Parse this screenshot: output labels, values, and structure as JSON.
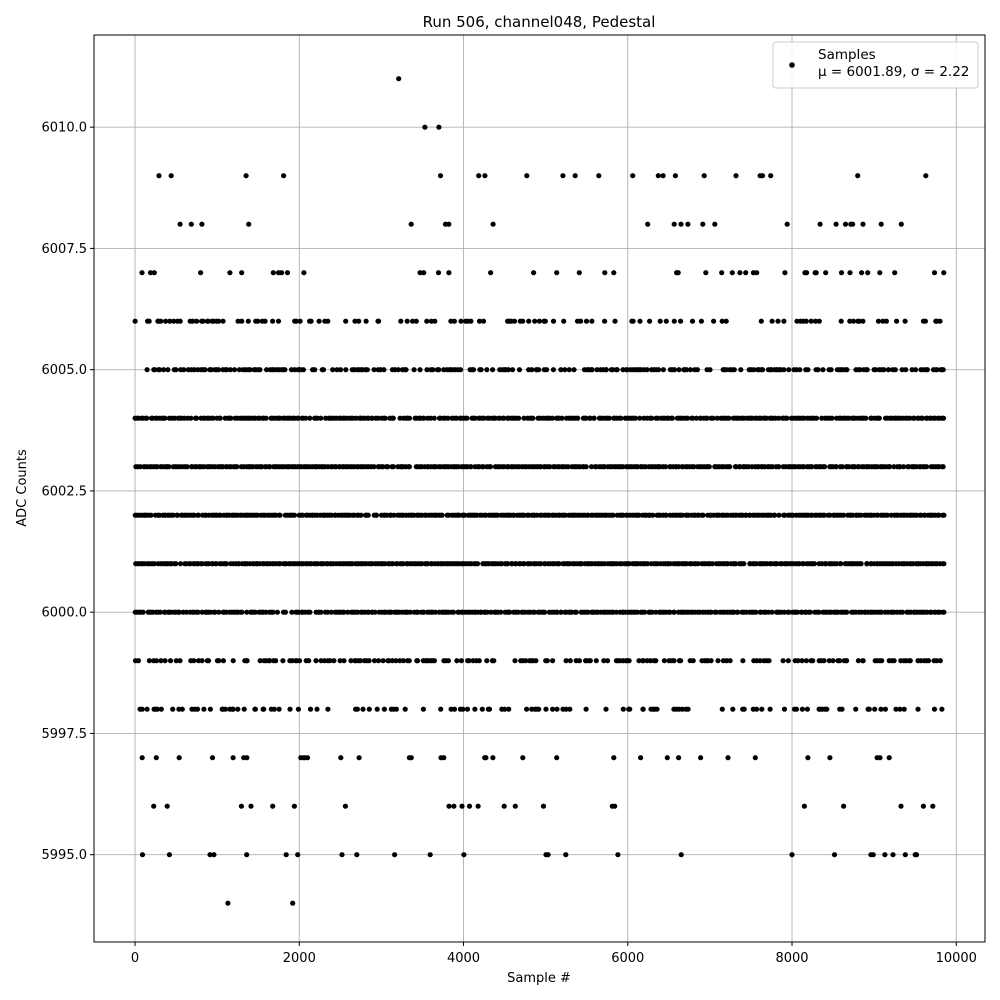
{
  "chart_data": {
    "type": "scatter",
    "title": "Run 506, channel048, Pedestal",
    "xlabel": "Sample #",
    "ylabel": "ADC Counts",
    "xlim": [
      -500,
      10350
    ],
    "ylim": [
      5993.2,
      6011.9
    ],
    "xticks": [
      0,
      2000,
      4000,
      6000,
      8000,
      10000
    ],
    "yticks": [
      5995.0,
      5997.5,
      6000.0,
      6002.5,
      6005.0,
      6007.5,
      6010.0
    ],
    "xtick_labels": [
      "0",
      "2000",
      "4000",
      "6000",
      "8000",
      "10000"
    ],
    "ytick_labels": [
      "5995.0",
      "5997.5",
      "6000.0",
      "6002.5",
      "6005.0",
      "6007.5",
      "6010.0"
    ],
    "grid": true,
    "marker_color": "#000000",
    "legend": {
      "placement": "top-right",
      "entry_label": "Samples",
      "stats": "μ = 6001.89, σ = 2.22"
    },
    "series": [
      {
        "n_samples": 9850,
        "x_range": [
          0,
          9850
        ],
        "level_populations": [
          {
            "y": 6001,
            "density": 0.98
          },
          {
            "y": 6002,
            "density": 0.96
          },
          {
            "y": 6003,
            "density": 0.93
          },
          {
            "y": 6000,
            "density": 0.86
          },
          {
            "y": 6004,
            "density": 0.83
          },
          {
            "y": 6005,
            "density": 0.55
          },
          {
            "y": 5999,
            "density": 0.45
          },
          {
            "y": 5998,
            "density": 0.3
          },
          {
            "y": 6006,
            "density": 0.26
          },
          {
            "y": 5997,
            "density": 0.12
          },
          {
            "y": 6007,
            "density": 0.1
          },
          {
            "y": 6008,
            "density": 0.055
          },
          {
            "y": 5996,
            "density": 0.035
          },
          {
            "y": 5995,
            "density": 0.018
          },
          {
            "y": 6009,
            "density": 0.015
          }
        ],
        "outlier_points": [
          {
            "x": 3210,
            "y": 6011
          },
          {
            "x": 3530,
            "y": 6010
          },
          {
            "x": 3700,
            "y": 6010
          },
          {
            "x": 1130,
            "y": 5994
          },
          {
            "x": 1920,
            "y": 5994
          },
          {
            "x": 440,
            "y": 6009
          },
          {
            "x": 3720,
            "y": 6009
          },
          {
            "x": 4260,
            "y": 6009
          },
          {
            "x": 4770,
            "y": 6009
          },
          {
            "x": 5210,
            "y": 6009
          },
          {
            "x": 5360,
            "y": 6009
          },
          {
            "x": 6060,
            "y": 6009
          },
          {
            "x": 6430,
            "y": 6009
          },
          {
            "x": 6580,
            "y": 6009
          },
          {
            "x": 6930,
            "y": 6009
          },
          {
            "x": 7640,
            "y": 6009
          },
          {
            "x": 7740,
            "y": 6009
          },
          {
            "x": 8800,
            "y": 6009
          },
          {
            "x": 90,
            "y": 5995
          },
          {
            "x": 960,
            "y": 5995
          },
          {
            "x": 1360,
            "y": 5995
          },
          {
            "x": 1840,
            "y": 5995
          },
          {
            "x": 1980,
            "y": 5995
          },
          {
            "x": 2520,
            "y": 5995
          },
          {
            "x": 2700,
            "y": 5995
          },
          {
            "x": 3160,
            "y": 5995
          },
          {
            "x": 5030,
            "y": 5995
          },
          {
            "x": 5880,
            "y": 5995
          },
          {
            "x": 6650,
            "y": 5995
          },
          {
            "x": 8000,
            "y": 5995
          },
          {
            "x": 8960,
            "y": 5995
          },
          {
            "x": 9230,
            "y": 5995
          },
          {
            "x": 9380,
            "y": 5995
          },
          {
            "x": 9500,
            "y": 5995
          }
        ]
      }
    ]
  }
}
